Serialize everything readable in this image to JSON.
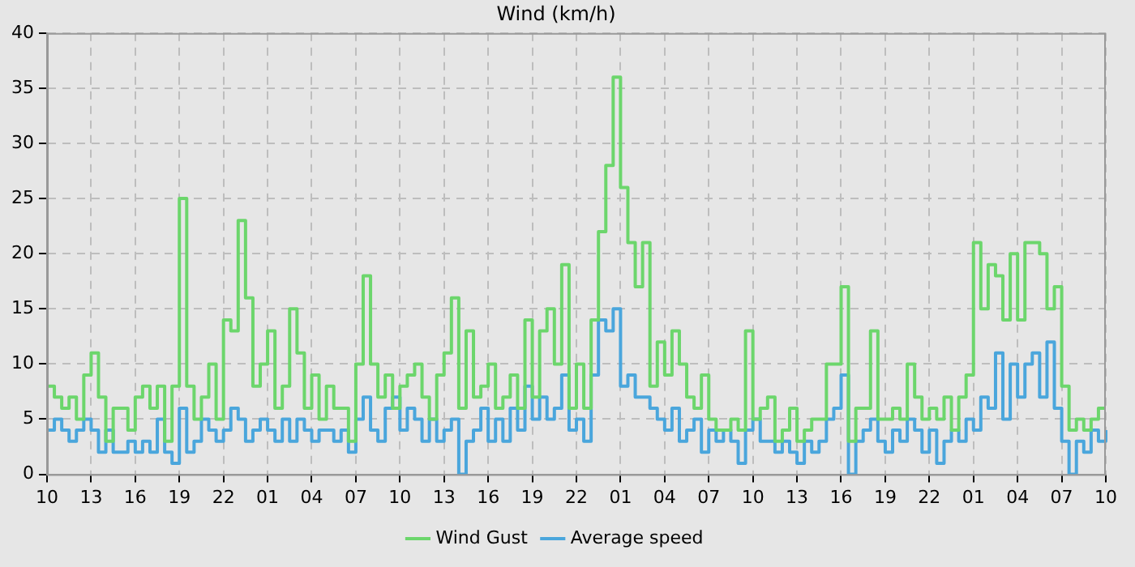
{
  "chart_data": {
    "type": "step",
    "title": "Wind (km/h)",
    "categories": [
      "10",
      null,
      null,
      null,
      null,
      null,
      "13",
      null,
      null,
      null,
      null,
      null,
      "16",
      null,
      null,
      null,
      null,
      null,
      "19",
      null,
      null,
      null,
      null,
      null,
      "22",
      null,
      null,
      null,
      null,
      null,
      "01",
      null,
      null,
      null,
      null,
      null,
      "04",
      null,
      null,
      null,
      null,
      null,
      "07",
      null,
      null,
      null,
      null,
      null,
      "10",
      null,
      null,
      null,
      null,
      null,
      "13",
      null,
      null,
      null,
      null,
      null,
      "16",
      null,
      null,
      null,
      null,
      null,
      "19",
      null,
      null,
      null,
      null,
      null,
      "22",
      null,
      null,
      null,
      null,
      null,
      "01",
      null,
      null,
      null,
      null,
      null,
      "04",
      null,
      null,
      null,
      null,
      null,
      "07",
      null,
      null,
      null,
      null,
      null,
      "10",
      null,
      null,
      null,
      null,
      null,
      "13",
      null,
      null,
      null,
      null,
      null,
      "16",
      null,
      null,
      null,
      null,
      null,
      "19",
      null,
      null,
      null,
      null,
      null,
      "22",
      null,
      null,
      null,
      null,
      null,
      "01",
      null,
      null,
      null,
      null,
      null,
      "04",
      null,
      null,
      null,
      null,
      null,
      "07",
      null,
      null,
      null,
      null,
      null,
      "10"
    ],
    "series": [
      {
        "name": "Wind Gust",
        "color": "#6cd66c",
        "values": [
          8,
          7,
          6,
          7,
          5,
          9,
          11,
          7,
          3,
          6,
          6,
          4,
          7,
          8,
          6,
          8,
          3,
          8,
          25,
          8,
          5,
          7,
          10,
          5,
          14,
          13,
          23,
          16,
          8,
          10,
          13,
          6,
          8,
          15,
          11,
          6,
          9,
          5,
          8,
          6,
          6,
          3,
          10,
          18,
          10,
          7,
          9,
          6,
          8,
          9,
          10,
          7,
          5,
          9,
          11,
          16,
          6,
          13,
          7,
          8,
          10,
          6,
          7,
          9,
          6,
          14,
          7,
          13,
          15,
          10,
          19,
          6,
          10,
          6,
          14,
          22,
          28,
          36,
          26,
          21,
          17,
          21,
          8,
          12,
          9,
          13,
          10,
          7,
          6,
          9,
          5,
          4,
          4,
          5,
          4,
          13,
          5,
          6,
          7,
          3,
          4,
          6,
          3,
          4,
          5,
          5,
          10,
          10,
          17,
          3,
          6,
          6,
          13,
          5,
          5,
          6,
          5,
          10,
          7,
          5,
          6,
          5,
          7,
          4,
          7,
          9,
          21,
          15,
          19,
          18,
          14,
          20,
          14,
          21,
          21,
          20,
          15,
          17,
          8,
          4,
          5,
          4,
          5,
          6,
          6
        ]
      },
      {
        "name": "Average speed",
        "color": "#4aa6dc",
        "values": [
          4,
          5,
          4,
          3,
          4,
          5,
          4,
          2,
          4,
          2,
          2,
          3,
          2,
          3,
          2,
          5,
          2,
          1,
          6,
          2,
          3,
          5,
          4,
          3,
          4,
          6,
          5,
          3,
          4,
          5,
          4,
          3,
          5,
          3,
          5,
          4,
          3,
          4,
          4,
          3,
          4,
          2,
          5,
          7,
          4,
          3,
          6,
          7,
          4,
          6,
          5,
          3,
          5,
          3,
          4,
          5,
          0,
          3,
          4,
          6,
          3,
          5,
          3,
          6,
          4,
          8,
          5,
          7,
          5,
          6,
          9,
          4,
          5,
          3,
          9,
          14,
          13,
          15,
          8,
          9,
          7,
          7,
          6,
          5,
          4,
          6,
          3,
          4,
          5,
          2,
          4,
          3,
          4,
          3,
          1,
          4,
          5,
          3,
          3,
          2,
          3,
          2,
          1,
          3,
          2,
          3,
          5,
          6,
          9,
          0,
          3,
          4,
          5,
          3,
          2,
          4,
          3,
          5,
          4,
          2,
          4,
          1,
          3,
          4,
          3,
          5,
          4,
          7,
          6,
          11,
          5,
          10,
          7,
          10,
          11,
          7,
          12,
          6,
          3,
          0,
          3,
          2,
          4,
          3,
          4
        ]
      }
    ],
    "ylim": [
      0,
      40
    ],
    "yticks": [
      0,
      5,
      10,
      15,
      20,
      25,
      30,
      35,
      40
    ],
    "grid": true,
    "legend": "bottom"
  }
}
